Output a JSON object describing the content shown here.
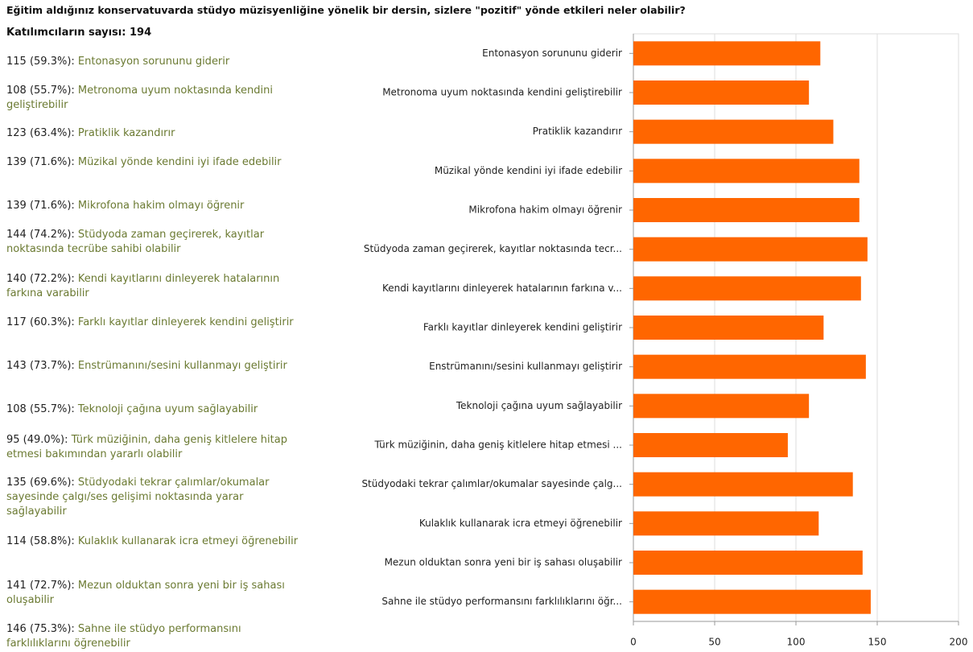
{
  "header": {
    "title": "Eğitim aldığınız konservatuvarda stüdyo müzisyenliğine yönelik bir dersin, sizlere \"pozitif\" yönde etkileri neler olabilir?",
    "participants": "Katılımcıların sayısı: 194"
  },
  "responses": [
    {
      "summary": "115 (59.3%):",
      "text": "Entonasyon sorununu giderir"
    },
    {
      "summary": "108 (55.7%):",
      "text": "Metronoma uyum noktasında kendini geliştirebilir"
    },
    {
      "summary": "123 (63.4%):",
      "text": "Pratiklik kazandırır"
    },
    {
      "summary": "139 (71.6%):",
      "text": "Müzikal yönde kendini iyi ifade edebilir"
    },
    {
      "summary": "139 (71.6%):",
      "text": "Mikrofona hakim olmayı öğrenir"
    },
    {
      "summary": "144 (74.2%):",
      "text": "Stüdyoda zaman geçirerek, kayıtlar noktasında tecrübe sahibi olabilir"
    },
    {
      "summary": "140 (72.2%):",
      "text": "Kendi kayıtlarını dinleyerek hatalarının farkına varabilir"
    },
    {
      "summary": "117 (60.3%):",
      "text": "Farklı kayıtlar dinleyerek kendini geliştirir"
    },
    {
      "summary": "143 (73.7%):",
      "text": "Enstrümanını/sesini kullanmayı geliştirir"
    },
    {
      "summary": "108 (55.7%):",
      "text": "Teknoloji çağına uyum sağlayabilir"
    },
    {
      "summary": "95 (49.0%):",
      "text": "Türk müziğinin, daha geniş kitlelere hitap etmesi bakımından yararlı olabilir"
    },
    {
      "summary": "135 (69.6%):",
      "text": "Stüdyodaki tekrar çalımlar/okumalar sayesinde çalgı/ses gelişimi noktasında yarar sağlayabilir"
    },
    {
      "summary": "114 (58.8%):",
      "text": "Kulaklık kullanarak icra etmeyi öğrenebilir"
    },
    {
      "summary": "141 (72.7%):",
      "text": "Mezun olduktan sonra yeni bir iş sahası oluşabilir"
    },
    {
      "summary": "146 (75.3%):",
      "text": "Sahne ile stüdyo performansını farklılıklarını öğrenebilir"
    }
  ],
  "chart_data": {
    "type": "hbar",
    "color": "#ff6600",
    "grid": true,
    "categories": [
      "Entonasyon sorununu giderir",
      "Metronoma uyum noktasında kendini geliştirebilir",
      "Pratiklik kazandırır",
      "Müzikal yönde kendini iyi ifade edebilir",
      "Mikrofona hakim olmayı öğrenir",
      "Stüdyoda zaman geçirerek, kayıtlar noktasında tecr...",
      "Kendi kayıtlarını dinleyerek hatalarının farkına v...",
      "Farklı kayıtlar dinleyerek kendini geliştirir",
      "Enstrümanını/sesini kullanmayı geliştirir",
      "Teknoloji çağına uyum sağlayabilir",
      "Türk müziğinin, daha geniş kitlelere hitap etmesi ...",
      "Stüdyodaki tekrar çalımlar/okumalar sayesinde çalg...",
      "Kulaklık kullanarak icra etmeyi öğrenebilir",
      "Mezun olduktan sonra yeni bir iş sahası oluşabilir",
      "Sahne ile stüdyo performansını farklılıklarını öğr..."
    ],
    "values": [
      115,
      108,
      123,
      139,
      139,
      144,
      140,
      117,
      143,
      108,
      95,
      135,
      114,
      141,
      146
    ],
    "xlim": [
      0,
      200
    ],
    "xticks": [
      0,
      50,
      100,
      150,
      200
    ]
  }
}
